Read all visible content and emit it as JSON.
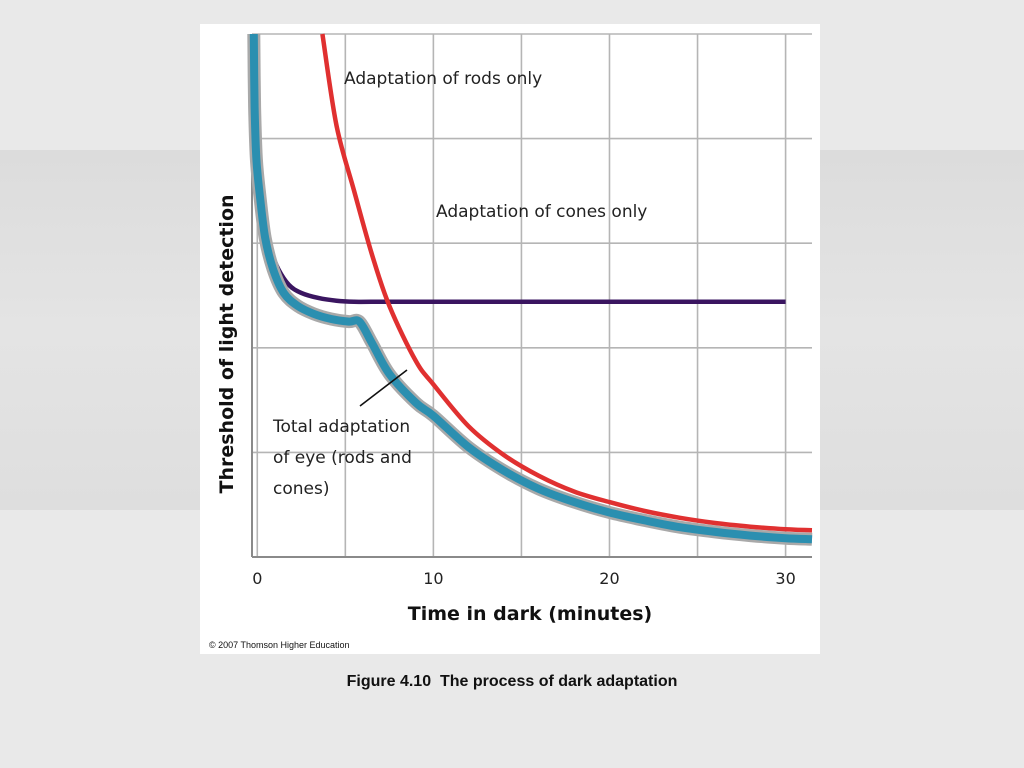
{
  "caption": "Figure 4.10  The process of dark adaptation",
  "copyright": "© 2007 Thomson Higher Education",
  "chart_data": {
    "type": "line",
    "xlabel": "Time in dark (minutes)",
    "ylabel": "Threshold of light detection",
    "xlim": [
      -0.3,
      31.5
    ],
    "ylim": [
      0,
      10
    ],
    "x_ticks": [
      "0",
      "10",
      "20",
      "30"
    ],
    "x_tick_values": [
      0,
      10,
      20,
      30
    ],
    "grid": true,
    "series": [
      {
        "name": "Adaptation of rods only",
        "color": "#e03030",
        "x": [
          3.7,
          4.5,
          5.5,
          6.5,
          7.5,
          9,
          10,
          12,
          14,
          16,
          18,
          20,
          22,
          24,
          26,
          28,
          30,
          31.5
        ],
        "y": [
          10,
          8.25,
          7.0,
          5.8,
          4.8,
          3.75,
          3.3,
          2.5,
          1.95,
          1.55,
          1.25,
          1.05,
          0.88,
          0.75,
          0.65,
          0.58,
          0.53,
          0.51
        ]
      },
      {
        "name": "Adaptation of cones only",
        "color": "#3a1560",
        "x": [
          0,
          0.05,
          0.15,
          0.3,
          0.5,
          0.8,
          1.2,
          1.8,
          2.5,
          3.5,
          4.5,
          5.5,
          6.5,
          10,
          15,
          20,
          25,
          30
        ],
        "y": [
          10,
          8.5,
          7.6,
          6.9,
          6.3,
          5.85,
          5.5,
          5.2,
          5.05,
          4.95,
          4.9,
          4.88,
          4.88,
          4.88,
          4.88,
          4.88,
          4.88,
          4.88
        ]
      },
      {
        "name": "Total adaptation of eye (rods and cones)",
        "color": "#2b8fb0",
        "x": [
          -0.2,
          -0.15,
          -0.05,
          0.15,
          0.45,
          0.9,
          1.5,
          2.3,
          3.2,
          4.2,
          5.2,
          5.8,
          6.5,
          7.5,
          9,
          10,
          12,
          14,
          16,
          18,
          20,
          22,
          24,
          26,
          28,
          30,
          31.5
        ],
        "y": [
          10,
          8.6,
          7.6,
          6.9,
          6.1,
          5.5,
          5.05,
          4.8,
          4.65,
          4.55,
          4.5,
          4.5,
          4.1,
          3.5,
          2.95,
          2.7,
          2.1,
          1.65,
          1.3,
          1.05,
          0.85,
          0.7,
          0.57,
          0.48,
          0.41,
          0.36,
          0.34
        ]
      }
    ],
    "annotations": [
      {
        "series": "rods",
        "lines": [
          "Adaptation of rods only"
        ]
      },
      {
        "series": "cones",
        "lines": [
          "Adaptation of cones only"
        ]
      },
      {
        "series": "total",
        "lines": [
          "Total adaptation",
          "of eye (rods and",
          "cones)"
        ]
      }
    ]
  }
}
